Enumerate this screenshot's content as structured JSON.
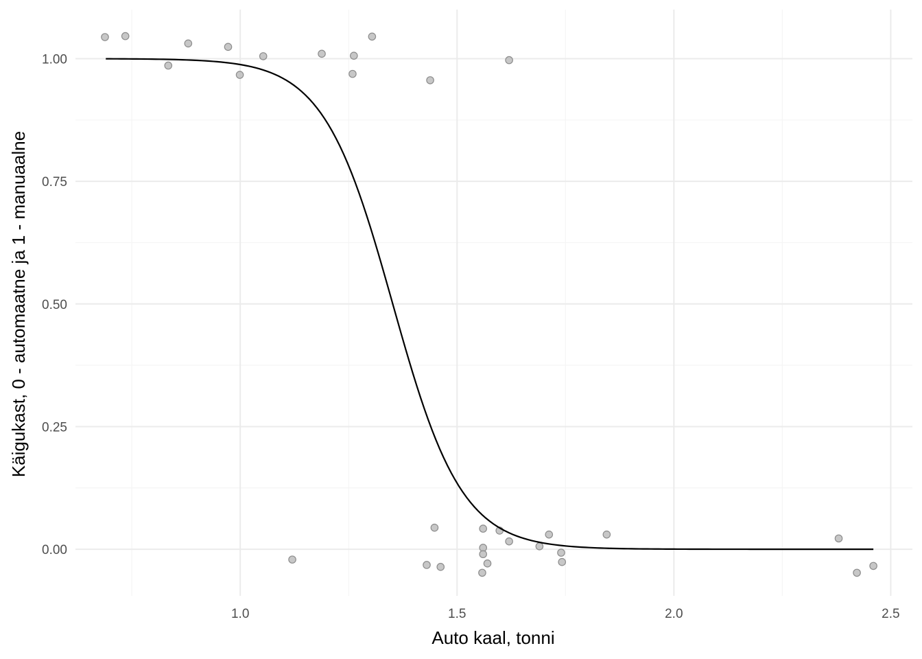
{
  "chart_data": {
    "type": "scatter",
    "title": "",
    "xlabel": "Auto kaal, tonni",
    "ylabel": "Käigukast, 0 - automaatne ja 1 - manuaalne",
    "xlim": [
      0.62,
      2.55
    ],
    "ylim": [
      -0.095,
      1.1
    ],
    "x_ticks": [
      {
        "value": 1.0,
        "label": "1.0"
      },
      {
        "value": 1.5,
        "label": "1.5"
      },
      {
        "value": 2.0,
        "label": "2.0"
      },
      {
        "value": 2.5,
        "label": "2.5"
      }
    ],
    "y_ticks": [
      {
        "value": 0.0,
        "label": "0.00"
      },
      {
        "value": 0.25,
        "label": "0.25"
      },
      {
        "value": 0.5,
        "label": "0.50"
      },
      {
        "value": 0.75,
        "label": "0.75"
      },
      {
        "value": 1.0,
        "label": "1.00"
      }
    ],
    "x_minor_grid": [
      0.75,
      1.25,
      1.75,
      2.25
    ],
    "y_minor_grid": [
      0.125,
      0.375,
      0.625,
      0.875
    ],
    "grid": true,
    "points": [
      {
        "x": 0.688,
        "y": 1.044
      },
      {
        "x": 0.735,
        "y": 1.046
      },
      {
        "x": 0.834,
        "y": 0.986
      },
      {
        "x": 0.88,
        "y": 1.031
      },
      {
        "x": 0.972,
        "y": 1.024
      },
      {
        "x": 0.999,
        "y": 0.967
      },
      {
        "x": 1.053,
        "y": 1.005
      },
      {
        "x": 1.188,
        "y": 1.01
      },
      {
        "x": 1.259,
        "y": 0.969
      },
      {
        "x": 1.262,
        "y": 1.006
      },
      {
        "x": 1.304,
        "y": 1.045
      },
      {
        "x": 1.438,
        "y": 0.956
      },
      {
        "x": 1.62,
        "y": 0.997
      },
      {
        "x": 1.12,
        "y": -0.021
      },
      {
        "x": 1.43,
        "y": -0.032
      },
      {
        "x": 1.448,
        "y": 0.044
      },
      {
        "x": 1.462,
        "y": -0.036
      },
      {
        "x": 1.558,
        "y": -0.048
      },
      {
        "x": 1.56,
        "y": 0.042
      },
      {
        "x": 1.56,
        "y": 0.003
      },
      {
        "x": 1.56,
        "y": -0.01
      },
      {
        "x": 1.57,
        "y": -0.029
      },
      {
        "x": 1.598,
        "y": 0.038
      },
      {
        "x": 1.62,
        "y": 0.016
      },
      {
        "x": 1.69,
        "y": 0.006
      },
      {
        "x": 1.712,
        "y": 0.03
      },
      {
        "x": 1.74,
        "y": -0.007
      },
      {
        "x": 1.742,
        "y": -0.026
      },
      {
        "x": 1.845,
        "y": 0.03
      },
      {
        "x": 2.38,
        "y": 0.022
      },
      {
        "x": 2.422,
        "y": -0.048
      },
      {
        "x": 2.46,
        "y": -0.034
      }
    ],
    "fit_curve": {
      "type": "logistic",
      "intercept": 16.95,
      "slope": -12.54,
      "x_range": [
        0.69,
        2.46
      ]
    },
    "colors": {
      "point_fill": "#bdbdbd",
      "point_stroke": "#8c8c8c",
      "curve": "#000000",
      "grid_major": "#ebebeb",
      "grid_minor": "#f5f5f5"
    }
  }
}
